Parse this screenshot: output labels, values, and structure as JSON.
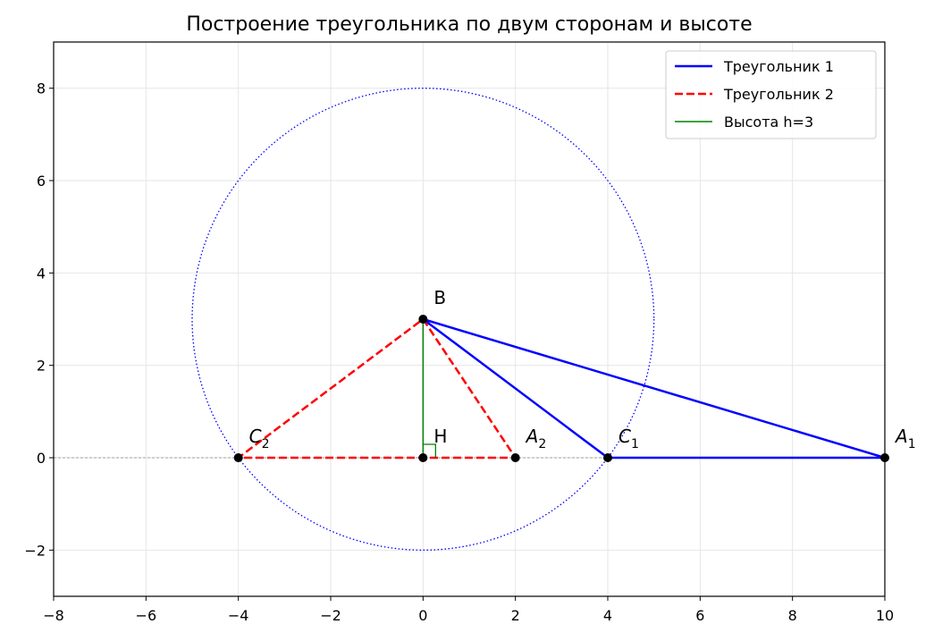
{
  "chart_data": {
    "type": "geometry",
    "title": "Построение треугольника по двум сторонам и высоте",
    "xlim": [
      -8,
      10
    ],
    "ylim": [
      -3,
      9
    ],
    "xticks": [
      {
        "value": -8,
        "label": "−8"
      },
      {
        "value": -6,
        "label": "−6"
      },
      {
        "value": -4,
        "label": "−4"
      },
      {
        "value": -2,
        "label": "−2"
      },
      0,
      2,
      4,
      6,
      8,
      10
    ],
    "yticks": [
      {
        "value": -2,
        "label": "−2"
      },
      0,
      2,
      4,
      6,
      8
    ],
    "grid": true,
    "hline": 0,
    "legend": "upper right",
    "circle": {
      "center": [
        0,
        3
      ],
      "radius": 5,
      "color": "#0000ff"
    },
    "series": [
      {
        "name": "Треугольник 1",
        "color": "#0000ff",
        "style": "solid",
        "width": 2.5,
        "x": [
          0,
          10,
          4,
          0
        ],
        "y": [
          3,
          0,
          0,
          3
        ]
      },
      {
        "name": "Треугольник 2",
        "color": "#ff0000",
        "style": "dashed",
        "width": 2.5,
        "x": [
          0,
          2,
          -4,
          0
        ],
        "y": [
          3,
          0,
          0,
          3
        ]
      },
      {
        "name": "Высота h=3",
        "color": "#008000",
        "style": "solid",
        "width": 1.5,
        "x": [
          0,
          0
        ],
        "y": [
          3,
          0
        ]
      }
    ],
    "points": [
      {
        "label": "B",
        "x": 0,
        "y": 3
      },
      {
        "label": "H",
        "x": 0,
        "y": 0
      },
      {
        "label": "A",
        "sub": "2",
        "x": 2,
        "y": 0
      },
      {
        "label": "C",
        "sub": "2",
        "x": -4,
        "y": 0
      },
      {
        "label": "C",
        "sub": "1",
        "x": 4,
        "y": 0
      },
      {
        "label": "A",
        "sub": "1",
        "x": 10,
        "y": 0
      }
    ]
  }
}
